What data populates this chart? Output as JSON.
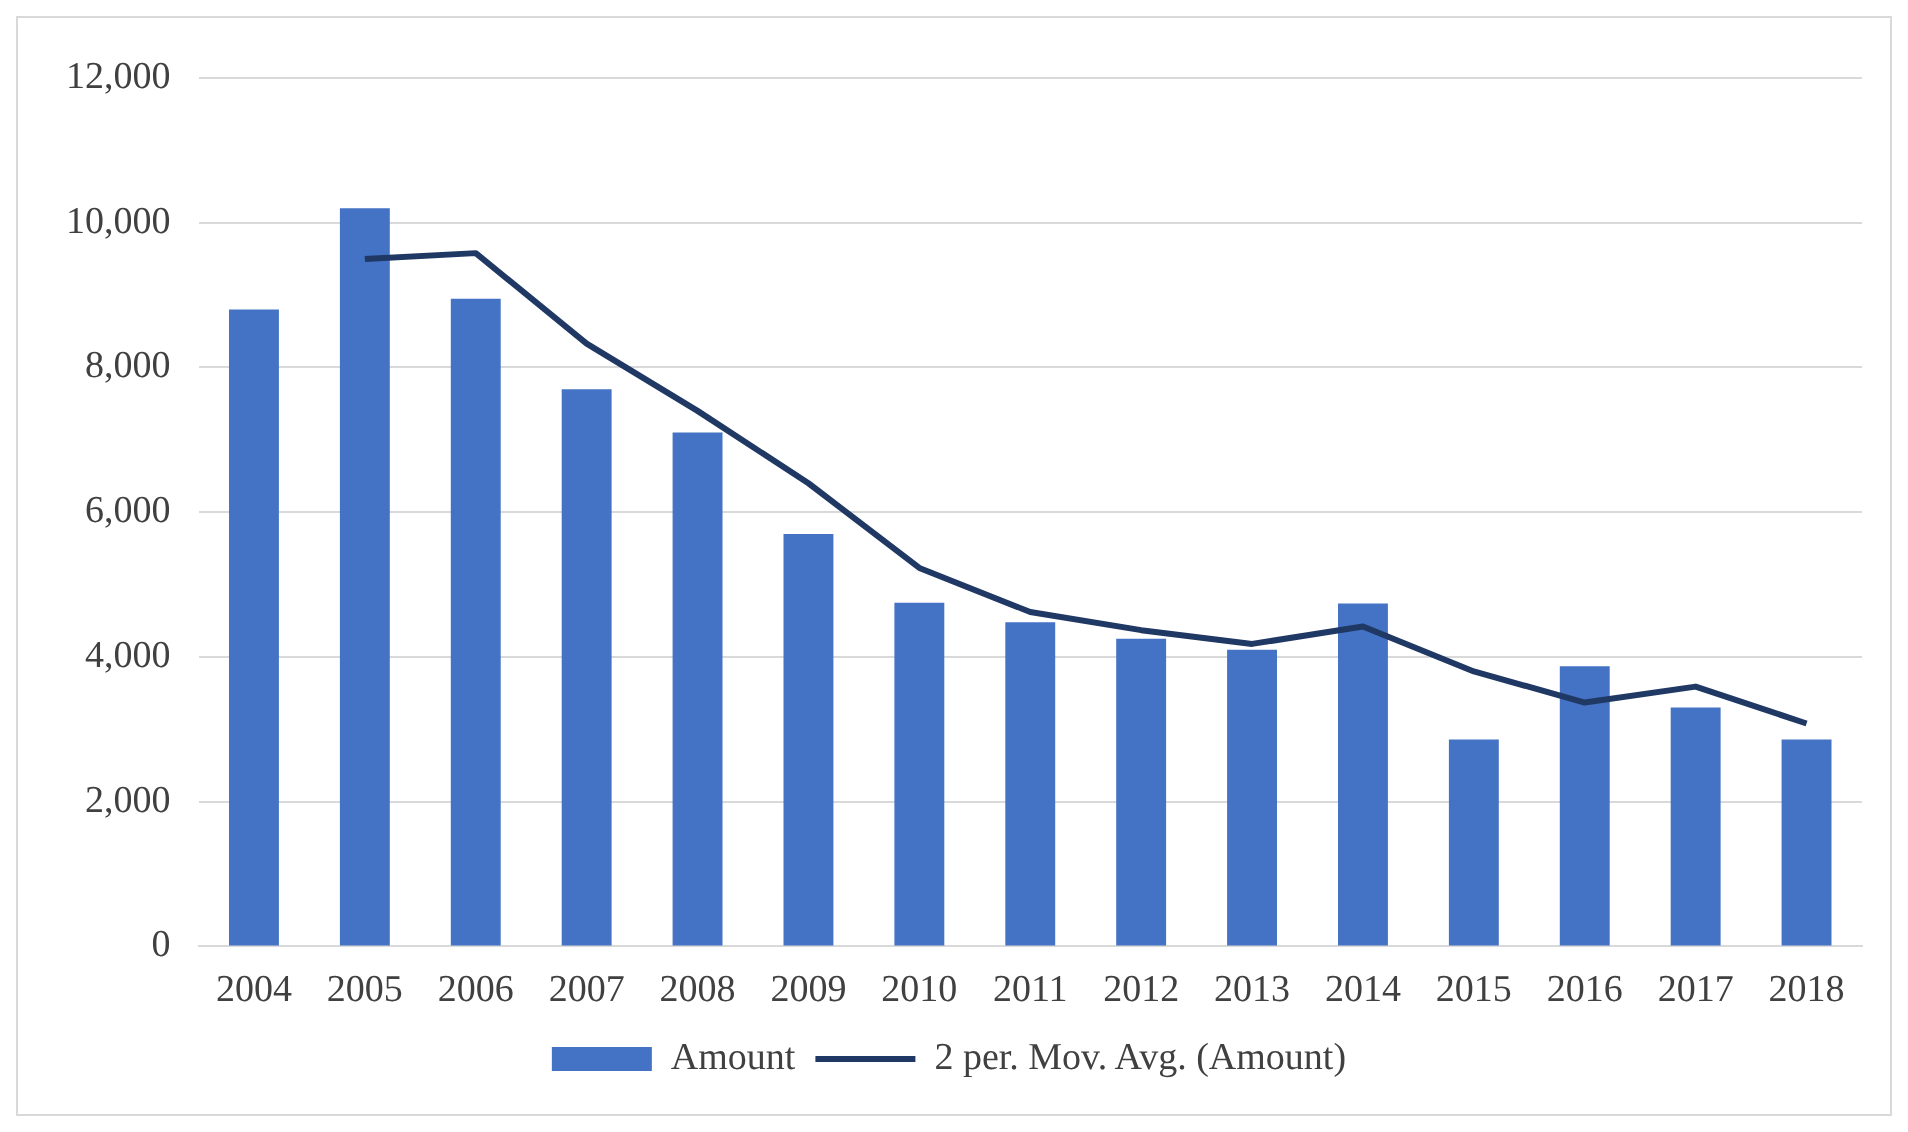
{
  "chart_data": {
    "type": "bar",
    "categories": [
      "2004",
      "2005",
      "2006",
      "2007",
      "2008",
      "2009",
      "2010",
      "2011",
      "2012",
      "2013",
      "2014",
      "2015",
      "2016",
      "2017",
      "2018"
    ],
    "series": [
      {
        "name": "Amount",
        "color": "#4472c4",
        "values": [
          8800,
          10200,
          8950,
          7700,
          7100,
          5700,
          4750,
          4480,
          4250,
          4100,
          4740,
          2860,
          3870,
          3300,
          2860
        ]
      },
      {
        "name": "2 per. Mov. Avg. (Amount)",
        "type": "line",
        "color": "#203864",
        "values": [
          null,
          9500,
          9580,
          8330,
          7400,
          6400,
          5230,
          4620,
          4370,
          4180,
          4420,
          3800,
          3370,
          3590,
          3080
        ]
      }
    ],
    "ylim": [
      0,
      12000
    ],
    "yticks": [
      0,
      {
        "value": 2000,
        "label": "2,000"
      },
      {
        "value": 4000,
        "label": "4,000"
      },
      {
        "value": 6000,
        "label": "6,000"
      },
      {
        "value": 8000,
        "label": "8,000"
      },
      {
        "value": 10000,
        "label": "10,000"
      },
      {
        "value": 12000,
        "label": "12,000"
      }
    ],
    "grid": "y",
    "legend": "bottom",
    "marker": "none"
  }
}
